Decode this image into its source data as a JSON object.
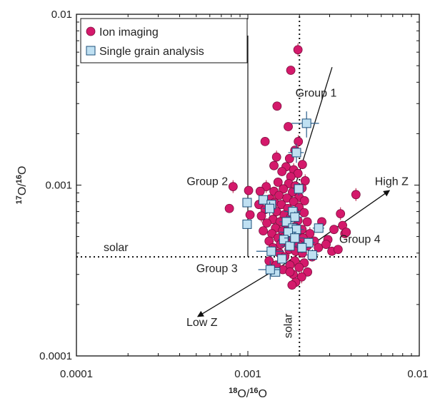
{
  "colors": {
    "ion": "#d4196b",
    "ion_stroke": "#7a0f3d",
    "grain_fill": "#bfe0f2",
    "grain_stroke": "#1c4f7a",
    "errbar": "#c63a5f",
    "grain_errbar": "#2a5e8c"
  },
  "chart_data": {
    "type": "scatter",
    "log_x": true,
    "log_y": true,
    "xlim": [
      0.0001,
      0.01
    ],
    "ylim": [
      0.0001,
      0.01
    ],
    "xticks": [
      "0.0001",
      "0.001",
      "0.01"
    ],
    "yticks": [
      "0.0001",
      "0.001",
      "0.01"
    ],
    "xlabel": {
      "sup": "18",
      "base": "O/",
      "sup2": "16",
      "base2": "O"
    },
    "ylabel": {
      "sup": "17",
      "base": "O/",
      "sup2": "16",
      "base2": "O"
    },
    "grid": false,
    "legend": {
      "placement": "top-left",
      "entries": [
        {
          "name": "Ion imaging",
          "marker": "circle"
        },
        {
          "name": "Single grain analysis",
          "marker": "square"
        }
      ]
    },
    "reference_lines": [
      {
        "orientation": "horizontal",
        "value": 0.00038,
        "style": "dotted",
        "label": "solar"
      },
      {
        "orientation": "vertical",
        "value": 0.002,
        "style": "dotted",
        "label": "solar"
      },
      {
        "orientation": "vertical",
        "value": 0.001,
        "style": "solid",
        "y_from": 0.00038,
        "y_to": 0.0075
      }
    ],
    "lines": [
      {
        "from": [
          0.0018,
          0.00085
        ],
        "to": [
          0.0031,
          0.0049
        ],
        "arrow": false
      },
      {
        "from": [
          0.0016,
          0.00034
        ],
        "to": [
          0.0067,
          0.00093
        ],
        "arrow": true
      },
      {
        "from": [
          0.0016,
          0.00034
        ],
        "to": [
          0.00051,
          0.00017
        ],
        "arrow": true
      }
    ],
    "annotations": [
      {
        "text": "Group 1",
        "x": 0.0025,
        "y": 0.0033
      },
      {
        "text": "Group 2",
        "x": 0.00058,
        "y": 0.001
      },
      {
        "text": "Group 3",
        "x": 0.00066,
        "y": 0.00031
      },
      {
        "text": "Group 4",
        "x": 0.0045,
        "y": 0.00046
      },
      {
        "text": "High Z",
        "x": 0.0069,
        "y": 0.001
      },
      {
        "text": "Low Z",
        "x": 0.00054,
        "y": 0.00015
      },
      {
        "text": "solar",
        "x": 0.00017,
        "y": 0.00041
      },
      {
        "text": "solar",
        "x": 0.0018,
        "y": 0.00015,
        "rotated": true
      }
    ],
    "series": [
      {
        "name": "Ion imaging",
        "marker": "circle",
        "points": [
          [
            0.00196,
            0.0062
          ],
          [
            0.00178,
            0.0047
          ],
          [
            0.00148,
            0.0029
          ],
          [
            0.00172,
            0.0022
          ],
          [
            0.00197,
            0.0018
          ],
          [
            0.00126,
            0.0018
          ],
          [
            0.00188,
            0.0016
          ],
          [
            0.00175,
            0.00143
          ],
          [
            0.00147,
            0.00146
          ],
          [
            0.00208,
            0.00132
          ],
          [
            0.00167,
            0.00128
          ],
          [
            0.00142,
            0.0013
          ],
          [
            0.00185,
            0.00123
          ],
          [
            0.00158,
            0.0012
          ],
          [
            0.00196,
            0.00117
          ],
          [
            0.00178,
            0.00112
          ],
          [
            0.00216,
            0.00106
          ],
          [
            0.0015,
            0.00104
          ],
          [
            0.00173,
            0.00102
          ],
          [
            0.00189,
            0.00099
          ],
          [
            0.00128,
            0.00098
          ],
          [
            0.00207,
            0.00096
          ],
          [
            0.00161,
            0.00095
          ],
          [
            0.00142,
            0.00092
          ],
          [
            0.00182,
            0.00091
          ],
          [
            0.00101,
            0.00093
          ],
          [
            0.00118,
            0.00092
          ],
          [
            0.00152,
            0.00087
          ],
          [
            0.00199,
            0.00085
          ],
          [
            0.00169,
            0.00084
          ],
          [
            0.00135,
            0.00083
          ],
          [
            0.00185,
            0.0008
          ],
          [
            0.00143,
            0.00079
          ],
          [
            0.00214,
            0.00081
          ],
          [
            0.00116,
            0.00077
          ],
          [
            0.00157,
            0.00077
          ],
          [
            0.00199,
            0.00074
          ],
          [
            0.00171,
            0.00073
          ],
          [
            0.00126,
            0.00072
          ],
          [
            0.00187,
            0.0007
          ],
          [
            0.00147,
            0.0007
          ],
          [
            0.00213,
            0.00069
          ],
          [
            0.00163,
            0.00067
          ],
          [
            0.00103,
            0.00067
          ],
          [
            0.0012,
            0.00066
          ],
          [
            0.00178,
            0.00065
          ],
          [
            0.0014,
            0.00063
          ],
          [
            0.00196,
            0.00062
          ],
          [
            0.00154,
            0.00061
          ],
          [
            0.00222,
            0.00061
          ],
          [
            0.00129,
            0.0006
          ],
          [
            0.00168,
            0.00058
          ],
          [
            0.00188,
            0.00057
          ],
          [
            0.00145,
            0.00056
          ],
          [
            0.00207,
            0.00055
          ],
          [
            0.00159,
            0.00054
          ],
          [
            0.00177,
            0.00053
          ],
          [
            0.00123,
            0.00054
          ],
          [
            0.00138,
            0.00052
          ],
          [
            0.00193,
            0.00051
          ],
          [
            0.0023,
            0.00052
          ],
          [
            0.00165,
            0.0005
          ],
          [
            0.0015,
            0.00049
          ],
          [
            0.0021,
            0.00049
          ],
          [
            0.00182,
            0.00048
          ],
          [
            0.00133,
            0.00047
          ],
          [
            0.00244,
            0.00047
          ],
          [
            0.00168,
            0.00046
          ],
          [
            0.00155,
            0.00045
          ],
          [
            0.00197,
            0.00045
          ],
          [
            0.00222,
            0.00044
          ],
          [
            0.0014,
            0.00043
          ],
          [
            0.00174,
            0.00042
          ],
          [
            0.00258,
            0.00043
          ],
          [
            0.0019,
            0.00041
          ],
          [
            0.00208,
            0.0004
          ],
          [
            0.00153,
            0.0004
          ],
          [
            0.00164,
            0.00038
          ],
          [
            0.00237,
            0.00038
          ],
          [
            0.00133,
            0.00036
          ],
          [
            0.00188,
            0.00036
          ],
          [
            0.00213,
            0.00035
          ],
          [
            0.00176,
            0.00034
          ],
          [
            0.00146,
            0.00034
          ],
          [
            0.00199,
            0.00033
          ],
          [
            0.0016,
            0.00032
          ],
          [
            0.00223,
            0.00031
          ],
          [
            0.00184,
            0.0003
          ],
          [
            0.00206,
            0.00029
          ],
          [
            0.0019,
            0.00027
          ],
          [
            0.00176,
            0.00031
          ],
          [
            0.00181,
            0.00026
          ],
          [
            0.00082,
            0.00098
          ],
          [
            0.00078,
            0.00073
          ],
          [
            0.00318,
            0.00055
          ],
          [
            0.00293,
            0.00048
          ],
          [
            0.00347,
            0.00068
          ],
          [
            0.00368,
            0.00052
          ],
          [
            0.00357,
            0.00058
          ],
          [
            0.00309,
            0.00041
          ],
          [
            0.00427,
            0.00088
          ],
          [
            0.0027,
            0.00061
          ],
          [
            0.00286,
            0.00045
          ],
          [
            0.00336,
            0.00042
          ],
          [
            0.00375,
            0.00053
          ]
        ]
      },
      {
        "name": "Single grain analysis",
        "marker": "square",
        "points": [
          [
            0.0022,
            0.0023,
            0.0004,
            0.0004
          ],
          [
            0.00192,
            0.00155,
            0.0002,
            0.0002
          ],
          [
            0.00198,
            0.00095,
            0.00015,
            8e-05
          ],
          [
            0.00099,
            0.00079,
            0,
            0
          ],
          [
            0.00123,
            0.00082,
            0,
            0
          ],
          [
            0.00137,
            0.00077,
            0.0001,
            0
          ],
          [
            0.00134,
            0.00073,
            0.00012,
            7e-05
          ],
          [
            0.00183,
            0.0007,
            0.0002,
            6e-05
          ],
          [
            0.00188,
            0.00065,
            0.0002,
            5e-05
          ],
          [
            0.00168,
            0.00061,
            0.00015,
            5e-05
          ],
          [
            0.00183,
            0.00056,
            0.00018,
            4e-05
          ],
          [
            0.00192,
            0.00055,
            0.0002,
            4e-05
          ],
          [
            0.00172,
            0.00053,
            0.0002,
            4e-05
          ],
          [
            0.00259,
            0.00056,
            0.0002,
            3e-05
          ],
          [
            0.00099,
            0.00059,
            0,
            0
          ],
          [
            0.00162,
            0.00048,
            0.00012,
            3e-05
          ],
          [
            0.00176,
            0.00044,
            0.0002,
            3e-05
          ],
          [
            0.00188,
            0.00049,
            0.00025,
            4e-05
          ],
          [
            0.00226,
            0.00046,
            0.0002,
            3e-05
          ],
          [
            0.00238,
            0.00039,
            0.0002,
            3e-05
          ],
          [
            0.00137,
            0.00041,
            0.00025,
            3e-05
          ],
          [
            0.00158,
            0.00037,
            0,
            0
          ],
          [
            0.00145,
            0.00031,
            0,
            0
          ],
          [
            0.00135,
            0.00032,
            0.0002,
            4e-05
          ],
          [
            0.00207,
            0.00043,
            0.00015,
            3e-05
          ]
        ]
      }
    ]
  }
}
